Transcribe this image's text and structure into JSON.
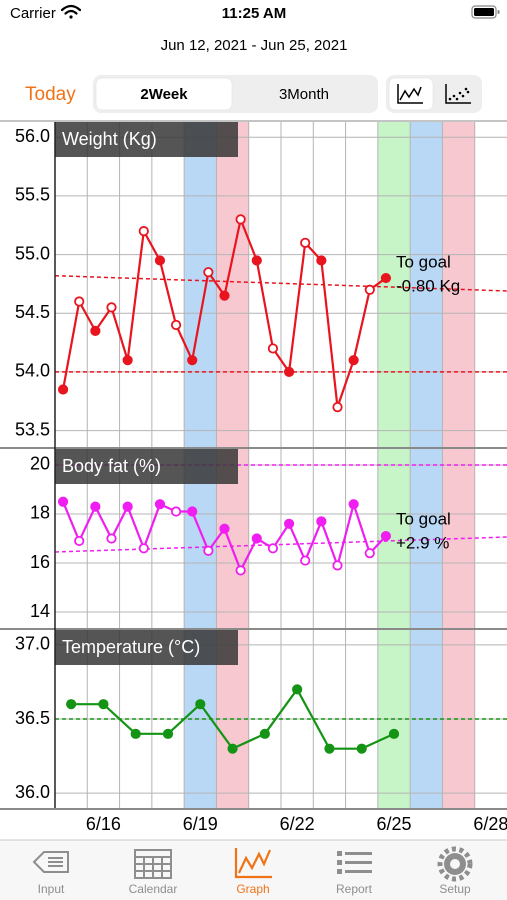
{
  "status_bar": {
    "carrier": "Carrier",
    "time": "11:25 AM"
  },
  "date_range": "Jun 12, 2021 - Jun 25, 2021",
  "toolbar": {
    "today": "Today",
    "segments": [
      "2Week",
      "3Month"
    ],
    "selected": 0
  },
  "day_highlights": [
    {
      "x": 19,
      "color": "#b8d8f6"
    },
    {
      "x": 20,
      "color": "#f8c8d0"
    },
    {
      "x": 25,
      "color": "#c8f5c8"
    },
    {
      "x": 26,
      "color": "#b8d8f6"
    },
    {
      "x": 27,
      "color": "#f8c8d0"
    }
  ],
  "chart_data": [
    {
      "type": "line",
      "title": "Weight (Kg)",
      "x": [
        14.75,
        15.25,
        15.75,
        16.25,
        16.75,
        17.25,
        17.75,
        18.25,
        18.75,
        19.25,
        19.75,
        20.25,
        20.75,
        21.25,
        21.75,
        22.25,
        22.75,
        23.25,
        23.75,
        24.25,
        24.75
      ],
      "series": [
        {
          "color": "#e8141e",
          "values": [
            53.85,
            54.6,
            54.35,
            54.55,
            54.1,
            55.2,
            54.95,
            54.4,
            54.1,
            54.85,
            54.65,
            55.3,
            54.95,
            54.2,
            54.0,
            55.1,
            54.95,
            53.7,
            54.1,
            54.7,
            54.8
          ]
        }
      ],
      "goal": 54.0,
      "trend": [
        54.82,
        54.69
      ],
      "annotation": [
        "To goal",
        "-0.80 Kg"
      ],
      "xlim": [
        14.5,
        28.5
      ],
      "ylim": [
        53.36,
        56.13
      ],
      "yticks": [
        53.5,
        {
          "value": 54.0,
          "label": "54.0"
        },
        54.5,
        {
          "value": 55.0,
          "label": "55.0"
        },
        55.5,
        {
          "value": 56.0,
          "label": "56.0"
        }
      ],
      "grid": true
    },
    {
      "type": "line",
      "title": "Body fat (%)",
      "x": [
        14.75,
        15.25,
        15.75,
        16.25,
        16.75,
        17.25,
        17.75,
        18.25,
        18.75,
        19.25,
        19.75,
        20.25,
        20.75,
        21.25,
        21.75,
        22.25,
        22.75,
        23.25,
        23.75,
        24.25,
        24.75
      ],
      "series": [
        {
          "color": "#f01ef0",
          "values": [
            18.5,
            16.9,
            18.3,
            17.0,
            18.3,
            16.6,
            18.4,
            18.1,
            18.1,
            16.5,
            17.4,
            15.7,
            17.0,
            16.6,
            17.6,
            16.1,
            17.7,
            15.9,
            18.4,
            16.4,
            17.1
          ]
        }
      ],
      "goal": 20,
      "trend": [
        16.45,
        17.06
      ],
      "annotation": [
        "To goal",
        "+2.9 %"
      ],
      "xlim": [
        14.5,
        28.5
      ],
      "ylim": [
        13.35,
        20.65
      ],
      "yticks": [
        14,
        16,
        18,
        20
      ],
      "grid": true
    },
    {
      "type": "line",
      "title": "Temperature (°C)",
      "x": [
        15,
        16,
        17,
        18,
        19,
        20,
        21,
        22,
        23,
        24,
        25
      ],
      "series": [
        {
          "color": "#149414",
          "values": [
            36.6,
            36.6,
            36.4,
            36.4,
            36.6,
            36.3,
            36.4,
            36.7,
            36.3,
            36.3,
            36.4
          ]
        }
      ],
      "goal": 36.5,
      "xlim": [
        14.5,
        28.5
      ],
      "ylim": [
        35.9,
        37.1
      ],
      "yticks": [
        {
          "value": 36.0,
          "label": "36.0"
        },
        36.5,
        {
          "value": 37.0,
          "label": "37.0"
        }
      ],
      "xticks": [
        {
          "value": 16,
          "label": "6/16"
        },
        {
          "value": 19,
          "label": "6/19"
        },
        {
          "value": 22,
          "label": "6/22"
        },
        {
          "value": 25,
          "label": "6/25"
        },
        {
          "value": 28,
          "label": "6/28"
        }
      ],
      "grid": true
    }
  ],
  "tab_bar": {
    "items": [
      "Input",
      "Calendar",
      "Graph",
      "Report",
      "Setup"
    ],
    "selected": 2
  }
}
